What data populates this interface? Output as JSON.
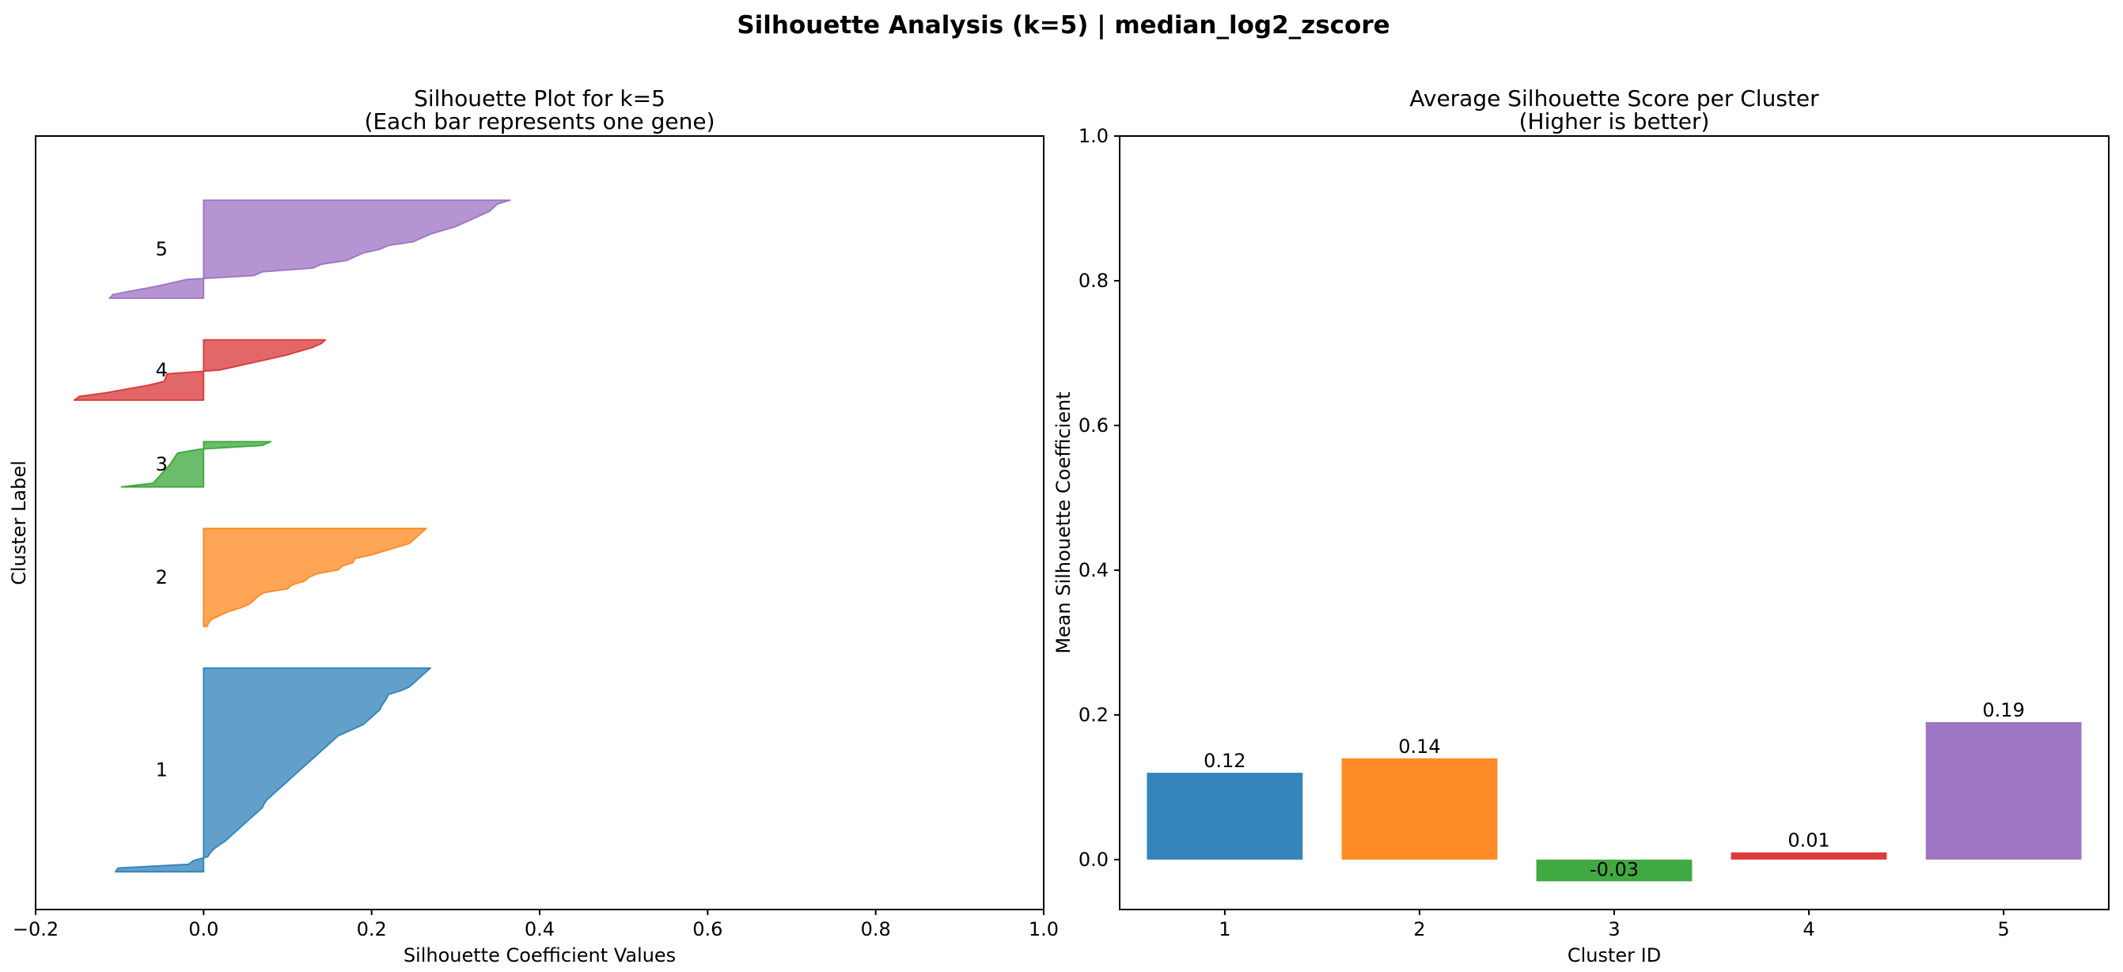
{
  "figure": {
    "title": "Silhouette Analysis (k=5) | median_log2_zscore",
    "background": "#ffffff"
  },
  "palette": {
    "cluster1_blue": "#1f77b4",
    "cluster2_orange": "#ff7f0e",
    "cluster3_green": "#2ca02c",
    "cluster4_red": "#d62728",
    "cluster5_purple": "#9467bd"
  },
  "chart_data": [
    {
      "type": "area",
      "name": "silhouette-plot",
      "title": "Silhouette Plot for k=5",
      "subtitle": "(Each bar represents one gene)",
      "xlabel": "Silhouette Coefficient Values",
      "ylabel": "Cluster Label",
      "xlim": [
        -0.2,
        1.0
      ],
      "xticks": [
        -0.2,
        0.0,
        0.2,
        0.4,
        0.6,
        0.8,
        1.0
      ],
      "xtick_labels": [
        "−0.2",
        "0.0",
        "0.2",
        "0.4",
        "0.6",
        "0.8",
        "1.0"
      ],
      "grid": false,
      "y_units_max": 205,
      "cluster_gap_units": 10,
      "cluster_label_x": -0.05,
      "fill_alpha": 0.7,
      "clusters": [
        {
          "id": "1",
          "color": "#1f77b4",
          "y_lower": 10,
          "values": [
            -0.105,
            -0.102,
            -0.018,
            -0.012,
            0.005,
            0.008,
            0.012,
            0.018,
            0.025,
            0.03,
            0.035,
            0.04,
            0.045,
            0.05,
            0.055,
            0.06,
            0.065,
            0.07,
            0.072,
            0.075,
            0.08,
            0.085,
            0.09,
            0.095,
            0.1,
            0.105,
            0.11,
            0.115,
            0.12,
            0.125,
            0.13,
            0.135,
            0.14,
            0.145,
            0.15,
            0.155,
            0.16,
            0.17,
            0.18,
            0.19,
            0.195,
            0.2,
            0.205,
            0.21,
            0.212,
            0.215,
            0.218,
            0.22,
            0.235,
            0.245,
            0.25,
            0.255,
            0.26,
            0.265,
            0.27
          ]
        },
        {
          "id": "2",
          "color": "#ff7f0e",
          "y_lower": 75,
          "values": [
            0.004,
            0.006,
            0.01,
            0.02,
            0.03,
            0.045,
            0.055,
            0.06,
            0.065,
            0.072,
            0.1,
            0.105,
            0.12,
            0.125,
            0.135,
            0.16,
            0.165,
            0.178,
            0.18,
            0.2,
            0.215,
            0.23,
            0.245,
            0.25,
            0.255,
            0.26,
            0.265
          ]
        },
        {
          "id": "3",
          "color": "#2ca02c",
          "y_lower": 112,
          "values": [
            -0.098,
            -0.06,
            -0.056,
            -0.052,
            -0.048,
            -0.044,
            -0.04,
            -0.037,
            -0.034,
            -0.031,
            -0.005,
            0.07,
            0.08
          ]
        },
        {
          "id": "4",
          "color": "#d62728",
          "y_lower": 135,
          "values": [
            -0.154,
            -0.148,
            -0.115,
            -0.09,
            -0.065,
            -0.047,
            -0.045,
            -0.044,
            0.02,
            0.04,
            0.06,
            0.08,
            0.1,
            0.115,
            0.13,
            0.14,
            0.145
          ]
        },
        {
          "id": "5",
          "color": "#9467bd",
          "y_lower": 162,
          "values": [
            -0.112,
            -0.108,
            -0.085,
            -0.06,
            -0.04,
            -0.02,
            0.06,
            0.07,
            0.13,
            0.14,
            0.17,
            0.18,
            0.19,
            0.21,
            0.22,
            0.25,
            0.26,
            0.27,
            0.285,
            0.3,
            0.31,
            0.32,
            0.33,
            0.34,
            0.345,
            0.35,
            0.365
          ]
        }
      ]
    },
    {
      "type": "bar",
      "name": "average-silhouette-bar-chart",
      "title": "Average Silhouette Score per Cluster",
      "subtitle": "(Higher is better)",
      "xlabel": "Cluster ID",
      "ylabel": "Mean Silhouette Coefficient",
      "categories": [
        "1",
        "2",
        "3",
        "4",
        "5"
      ],
      "values": [
        0.12,
        0.14,
        -0.03,
        0.01,
        0.19
      ],
      "value_labels": [
        "0.12",
        "0.14",
        "-0.03",
        "0.01",
        "0.19"
      ],
      "colors": [
        "#1f77b4",
        "#ff7f0e",
        "#2ca02c",
        "#d62728",
        "#9467bd"
      ],
      "bar_alpha": 0.9,
      "bar_width": 0.8,
      "xlim": [
        0.46,
        5.54
      ],
      "ylim": [
        -0.069,
        1.0
      ],
      "yticks": [
        0.0,
        0.2,
        0.4,
        0.6,
        0.8,
        1.0
      ],
      "ytick_labels": [
        "0.0",
        "0.2",
        "0.4",
        "0.6",
        "0.8",
        "1.0"
      ],
      "grid": false,
      "legend": null
    }
  ]
}
